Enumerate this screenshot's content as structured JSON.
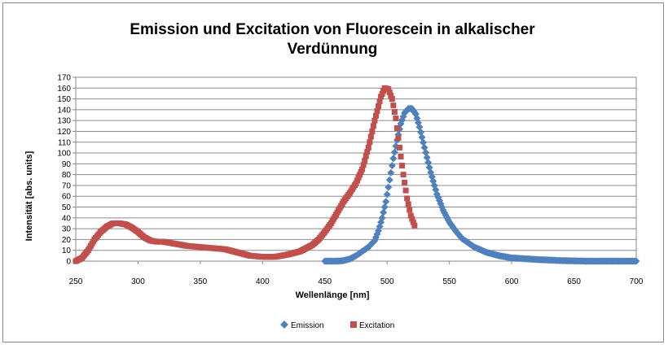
{
  "chart_data": {
    "type": "scatter",
    "title_line1": "Emission und Excitation von Fluorescein in alkalischer",
    "title_line2": "Verdünnung",
    "xlabel": "Wellenlänge [nm]",
    "ylabel": "Intensität [abs. units]",
    "xlim": [
      250,
      700
    ],
    "ylim": [
      0,
      170
    ],
    "x_ticks": [
      250,
      300,
      350,
      400,
      450,
      500,
      550,
      600,
      650,
      700
    ],
    "y_ticks": [
      0,
      10,
      20,
      30,
      40,
      50,
      60,
      70,
      80,
      90,
      100,
      110,
      120,
      130,
      140,
      150,
      160,
      170
    ],
    "grid": "horizontal",
    "legend_position": "bottom",
    "series": [
      {
        "name": "Emission",
        "color": "#4f81bd",
        "marker": "diamond",
        "points": [
          [
            450,
            0
          ],
          [
            460,
            0
          ],
          [
            465,
            0.5
          ],
          [
            470,
            2
          ],
          [
            475,
            5
          ],
          [
            480,
            9
          ],
          [
            485,
            13
          ],
          [
            490,
            19
          ],
          [
            493,
            28
          ],
          [
            496,
            40
          ],
          [
            499,
            55
          ],
          [
            502,
            75
          ],
          [
            505,
            95
          ],
          [
            508,
            112
          ],
          [
            511,
            127
          ],
          [
            514,
            137
          ],
          [
            517,
            141
          ],
          [
            520,
            141
          ],
          [
            523,
            136
          ],
          [
            526,
            124
          ],
          [
            530,
            105
          ],
          [
            535,
            82
          ],
          [
            540,
            62
          ],
          [
            545,
            47
          ],
          [
            550,
            36
          ],
          [
            555,
            28
          ],
          [
            560,
            21
          ],
          [
            570,
            13
          ],
          [
            580,
            8
          ],
          [
            590,
            5
          ],
          [
            600,
            3
          ],
          [
            620,
            1.5
          ],
          [
            640,
            0.5
          ],
          [
            660,
            0
          ],
          [
            680,
            0
          ],
          [
            700,
            0
          ]
        ]
      },
      {
        "name": "Excitation",
        "color": "#c0504d",
        "marker": "square",
        "points": [
          [
            250,
            0
          ],
          [
            255,
            3
          ],
          [
            260,
            10
          ],
          [
            265,
            20
          ],
          [
            270,
            27
          ],
          [
            275,
            32
          ],
          [
            280,
            35
          ],
          [
            285,
            35
          ],
          [
            290,
            34
          ],
          [
            295,
            31
          ],
          [
            300,
            27
          ],
          [
            305,
            22
          ],
          [
            310,
            19
          ],
          [
            315,
            18
          ],
          [
            320,
            18
          ],
          [
            330,
            16
          ],
          [
            340,
            14
          ],
          [
            350,
            13
          ],
          [
            360,
            12
          ],
          [
            370,
            11
          ],
          [
            380,
            8
          ],
          [
            390,
            5
          ],
          [
            400,
            4
          ],
          [
            410,
            4
          ],
          [
            420,
            6
          ],
          [
            430,
            9
          ],
          [
            440,
            15
          ],
          [
            445,
            20
          ],
          [
            450,
            27
          ],
          [
            455,
            35
          ],
          [
            460,
            45
          ],
          [
            465,
            55
          ],
          [
            470,
            63
          ],
          [
            475,
            72
          ],
          [
            480,
            85
          ],
          [
            485,
            105
          ],
          [
            490,
            130
          ],
          [
            495,
            152
          ],
          [
            498,
            160
          ],
          [
            501,
            159
          ],
          [
            504,
            150
          ],
          [
            507,
            132
          ],
          [
            510,
            105
          ],
          [
            513,
            80
          ],
          [
            516,
            58
          ],
          [
            519,
            42
          ],
          [
            522,
            33
          ]
        ]
      }
    ]
  }
}
